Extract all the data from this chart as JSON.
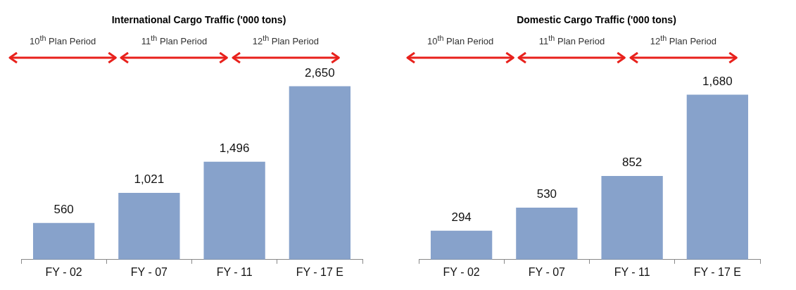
{
  "chart_data": [
    {
      "type": "bar",
      "title": "International Cargo Traffic ('000 tons)",
      "categories": [
        "FY - 02",
        "FY - 07",
        "FY - 11",
        "FY - 17 E"
      ],
      "values": [
        560,
        1021,
        1496,
        2650
      ],
      "color": "#87a2cb",
      "value_labels": [
        "560",
        "1,021",
        "1,496",
        "2,650"
      ],
      "annotations": [
        "10$^{th}$ Plan Period",
        "11$^{th}$ Plan Period",
        "12$^{th}$ Plan Period"
      ]
    },
    {
      "type": "bar",
      "title": "Domestic Cargo Traffic ('000 tons)",
      "categories": [
        "FY - 02",
        "FY - 07",
        "FY - 11",
        "FY - 17 E"
      ],
      "values": [
        294,
        530,
        852,
        1680
      ],
      "color": "#87a2cb",
      "value_labels": [
        "294",
        "530",
        "852",
        "1,680"
      ],
      "annotations": [
        "10$^{th}$ Plan Period",
        "11$^{th}$ Plan Period",
        "12$^{th}$ Plan Period"
      ]
    }
  ]
}
